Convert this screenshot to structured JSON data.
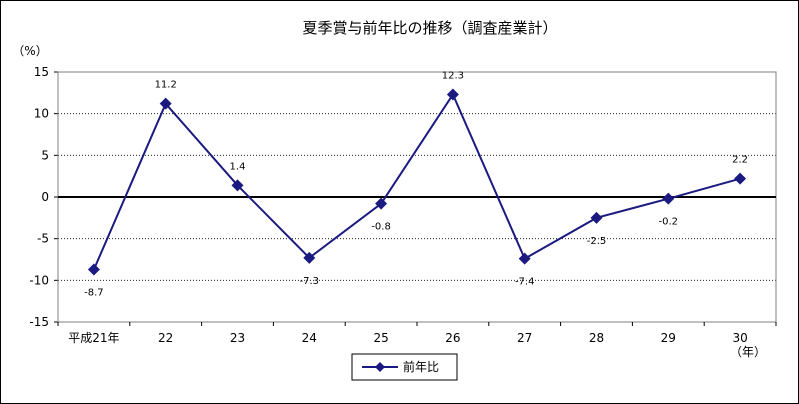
{
  "chart_data": {
    "type": "line",
    "title": "夏季賞与前年比の推移（調査産業計）",
    "y_unit": "（%）",
    "x_unit": "（年）",
    "categories": [
      "平成21年",
      "22",
      "23",
      "24",
      "25",
      "26",
      "27",
      "28",
      "29",
      "30"
    ],
    "series": [
      {
        "name": "前年比",
        "values": [
          -8.7,
          11.2,
          1.4,
          -7.3,
          -0.8,
          12.3,
          -7.4,
          -2.5,
          -0.2,
          2.2
        ],
        "color": "#1a1a80",
        "marker": "diamond"
      }
    ],
    "data_labels": [
      "-8.7",
      "11.2",
      "1.4",
      "-7.3",
      "-0.8",
      "12.3",
      "-7.4",
      "-2.5",
      "-0.2",
      "2.2"
    ],
    "ylim": [
      -15,
      15
    ],
    "y_ticks": [
      15,
      10,
      5,
      0,
      -5,
      -10,
      -15
    ],
    "grid": "horizontal-dotted",
    "legend_position": "bottom-center"
  }
}
